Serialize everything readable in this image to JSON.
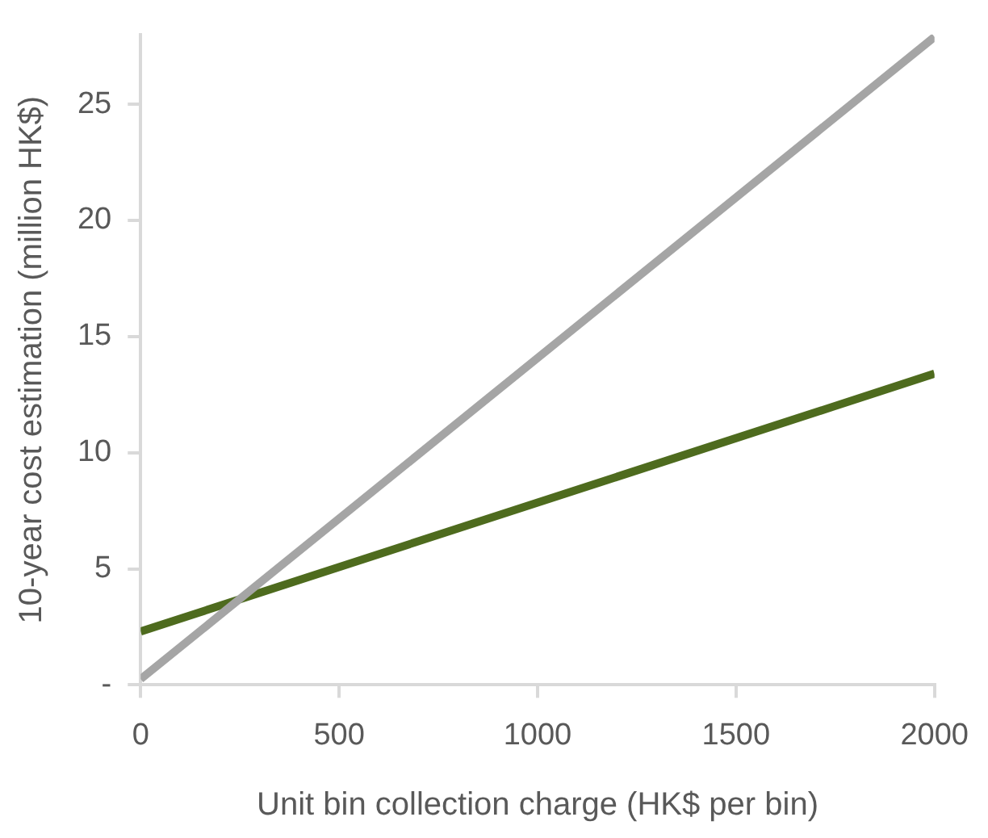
{
  "chart_data": {
    "type": "line",
    "xlabel": "Unit bin collection charge (HK$ per bin)",
    "ylabel": "10-year cost estimation (million HK$)",
    "x": [
      0,
      2000
    ],
    "series": [
      {
        "color": "#a5a5a5",
        "values": [
          0.25,
          27.9
        ]
      },
      {
        "color": "#4e6b1e",
        "values": [
          2.3,
          13.4
        ]
      }
    ],
    "xlim": [
      0,
      2000
    ],
    "xticks": [
      0,
      500,
      1000,
      1500,
      2000
    ],
    "ylim": [
      0,
      28
    ],
    "yticks": [
      {
        "value": 0,
        "label": "-"
      },
      5,
      10,
      15,
      20,
      25
    ],
    "grid": false,
    "legend": false,
    "marker": "none",
    "line_style": "solid"
  }
}
